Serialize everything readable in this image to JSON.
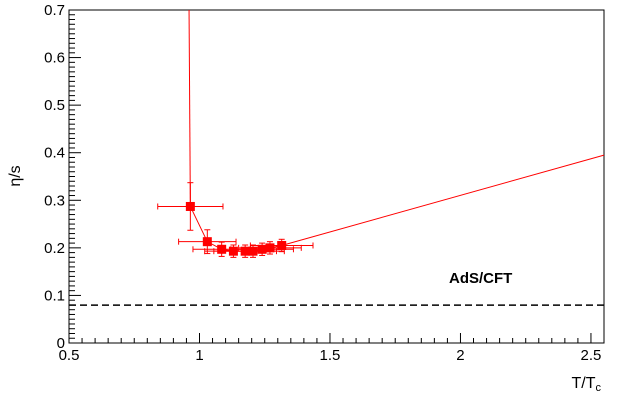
{
  "chart_data": {
    "type": "scatter",
    "title": "",
    "xlabel": "T/T",
    "xlabel_sub": "c",
    "ylabel": "η/s",
    "xlim": [
      0.5,
      2.55
    ],
    "ylim": [
      0,
      0.7
    ],
    "x_ticks": [
      0.5,
      1,
      1.5,
      2,
      2.5
    ],
    "x_tick_labels": [
      "0.5",
      "1",
      "1.5",
      "2",
      "2.5"
    ],
    "y_ticks": [
      0,
      0.1,
      0.2,
      0.3,
      0.4,
      0.5,
      0.6,
      0.7
    ],
    "y_tick_labels": [
      "0",
      "0.1",
      "0.2",
      "0.3",
      "0.4",
      "0.5",
      "0.6",
      "0.7"
    ],
    "grid": false,
    "series": [
      {
        "color": "#ff0000",
        "marker": "square",
        "points": [
          {
            "x": 0.965,
            "y": 0.287,
            "xerr": 0.125,
            "yerr": 0.05
          },
          {
            "x": 1.03,
            "y": 0.213,
            "xerr": 0.11,
            "yerr": 0.025
          },
          {
            "x": 1.085,
            "y": 0.197,
            "xerr": 0.11,
            "yerr": 0.015
          },
          {
            "x": 1.13,
            "y": 0.193,
            "xerr": 0.11,
            "yerr": 0.013
          },
          {
            "x": 1.175,
            "y": 0.193,
            "xerr": 0.12,
            "yerr": 0.013
          },
          {
            "x": 1.205,
            "y": 0.193,
            "xerr": 0.12,
            "yerr": 0.013
          },
          {
            "x": 1.24,
            "y": 0.197,
            "xerr": 0.12,
            "yerr": 0.013
          },
          {
            "x": 1.27,
            "y": 0.2,
            "xerr": 0.12,
            "yerr": 0.013
          },
          {
            "x": 1.315,
            "y": 0.205,
            "xerr": 0.12,
            "yerr": 0.013
          }
        ],
        "low_t_branch": [
          [
            0.965,
            0.287
          ],
          [
            0.96,
            0.7
          ]
        ],
        "high_t_branch": [
          [
            1.315,
            0.205
          ],
          [
            2.55,
            0.395
          ]
        ]
      }
    ],
    "reference_line": {
      "label": "AdS/CFT",
      "y": 0.0796,
      "style": "dashed",
      "color": "#000000"
    }
  }
}
